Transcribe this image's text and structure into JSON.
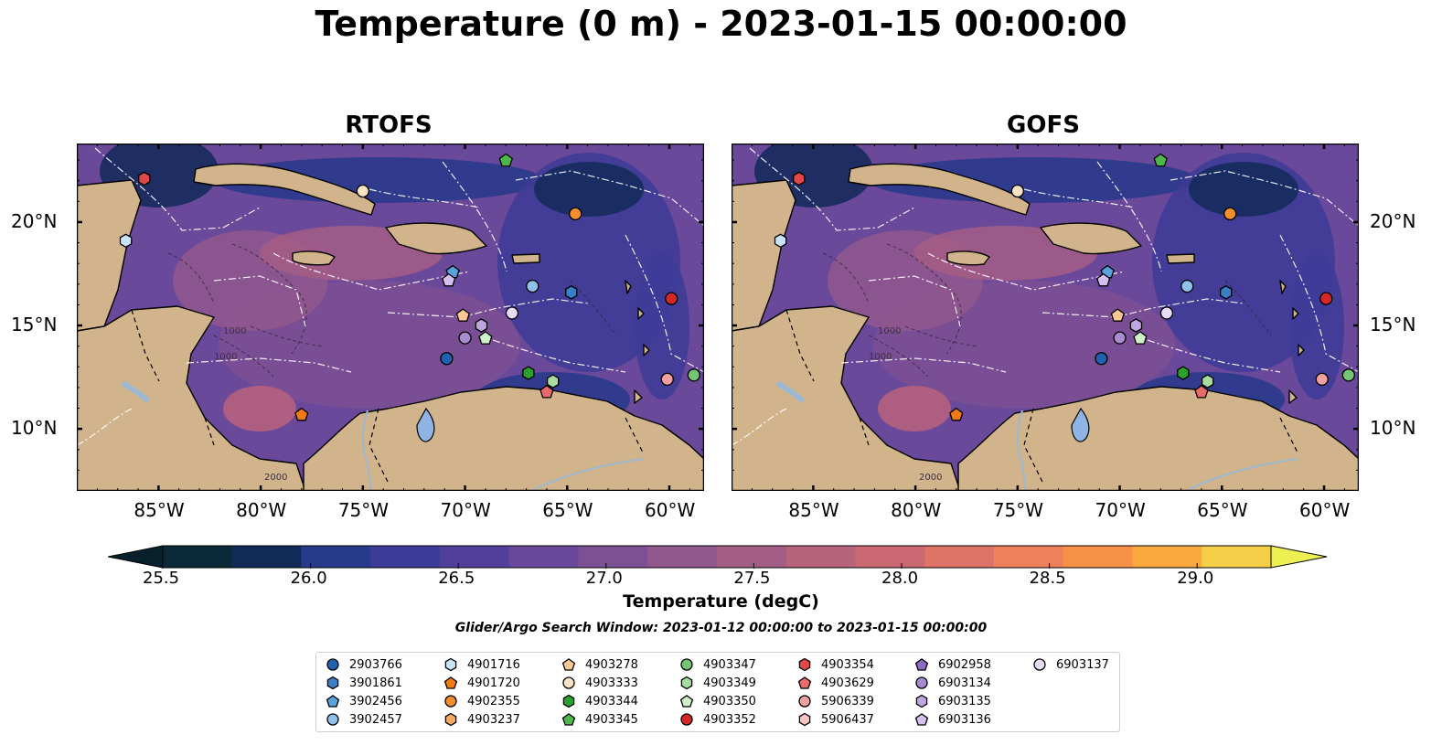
{
  "title": "Temperature (0 m) - 2023-01-15 00:00:00",
  "panels": [
    {
      "title": "RTOFS"
    },
    {
      "title": "GOFS"
    }
  ],
  "axes": {
    "lon_ticks": [
      "85°W",
      "80°W",
      "75°W",
      "70°W",
      "65°W",
      "60°W"
    ],
    "lon_values": [
      -85,
      -80,
      -75,
      -70,
      -65,
      -60
    ],
    "lat_ticks": [
      "20°N",
      "15°N",
      "10°N"
    ],
    "lat_values": [
      20,
      15,
      10
    ],
    "lon_range": [
      -89,
      -58.3
    ],
    "lat_range": [
      7,
      23.8
    ]
  },
  "colorbar": {
    "label": "Temperature (degC)",
    "ticks": [
      "25.5",
      "26.0",
      "26.5",
      "27.0",
      "27.5",
      "28.0",
      "28.5",
      "29.0"
    ],
    "tick_values": [
      25.5,
      26.0,
      26.5,
      27.0,
      27.5,
      28.0,
      28.5,
      29.0
    ],
    "range": [
      25.5,
      29.25
    ],
    "colors": [
      "#0a2a3a",
      "#122a58",
      "#273a8c",
      "#3d3c98",
      "#523f9c",
      "#6a489a",
      "#7c5094",
      "#91588d",
      "#a35e86",
      "#b8637c",
      "#cb6973",
      "#de7366",
      "#ee815a",
      "#f79147",
      "#f9a83e",
      "#f6cf49"
    ]
  },
  "annotations": {
    "search_window": "Glider/Argo Search Window: 2023-01-12 00:00:00 to 2023-01-15 00:00:00",
    "contour_labels": [
      "1000",
      "1000",
      "2000"
    ]
  },
  "colors": {
    "land": "#d2b48c",
    "lakes": "#8fb3e3",
    "rivers": "#9db8d0",
    "eez_lines": "#ffffff"
  },
  "legend": [
    {
      "id": "2903766",
      "marker": "circle",
      "color": "#1f63b0"
    },
    {
      "id": "3901861",
      "marker": "hexagon",
      "color": "#3a80c8"
    },
    {
      "id": "3902456",
      "marker": "pentagon",
      "color": "#5aa2dc"
    },
    {
      "id": "3902457",
      "marker": "circle",
      "color": "#8fc1ea"
    },
    {
      "id": "4901716",
      "marker": "hexagon",
      "color": "#c8e4f8"
    },
    {
      "id": "4901720",
      "marker": "pentagon",
      "color": "#f07a14"
    },
    {
      "id": "4902355",
      "marker": "circle",
      "color": "#f68e2e"
    },
    {
      "id": "4903237",
      "marker": "hexagon",
      "color": "#f9a95e"
    },
    {
      "id": "4903278",
      "marker": "pentagon",
      "color": "#fbc895"
    },
    {
      "id": "4903333",
      "marker": "circle",
      "color": "#fde3c6"
    },
    {
      "id": "4903344",
      "marker": "hexagon",
      "color": "#2ca02c"
    },
    {
      "id": "4903345",
      "marker": "pentagon",
      "color": "#4cb84a"
    },
    {
      "id": "4903347",
      "marker": "circle",
      "color": "#74c674"
    },
    {
      "id": "4903349",
      "marker": "hexagon",
      "color": "#a6dea0"
    },
    {
      "id": "4903350",
      "marker": "pentagon",
      "color": "#cff0c8"
    },
    {
      "id": "4903352",
      "marker": "circle",
      "color": "#d62728"
    },
    {
      "id": "4903354",
      "marker": "hexagon",
      "color": "#e04848"
    },
    {
      "id": "4903629",
      "marker": "pentagon",
      "color": "#ea6b6b"
    },
    {
      "id": "5906339",
      "marker": "circle",
      "color": "#f4a0a0"
    },
    {
      "id": "5906437",
      "marker": "hexagon",
      "color": "#f9c6c6"
    },
    {
      "id": "6902958",
      "marker": "pentagon",
      "color": "#8c6cc0"
    },
    {
      "id": "6903134",
      "marker": "circle",
      "color": "#a88bd0"
    },
    {
      "id": "6903135",
      "marker": "hexagon",
      "color": "#c0a6e0"
    },
    {
      "id": "6903136",
      "marker": "pentagon",
      "color": "#d4c0ec"
    },
    {
      "id": "6903137",
      "marker": "circle",
      "color": "#e8dcf6"
    }
  ],
  "floats": [
    {
      "id": "4903354",
      "lon": -85.7,
      "lat": 22.1
    },
    {
      "id": "4903333",
      "lon": -75.0,
      "lat": 21.5
    },
    {
      "id": "4903345",
      "lon": -68.0,
      "lat": 23.0
    },
    {
      "id": "4901716",
      "lon": -86.6,
      "lat": 19.1
    },
    {
      "id": "4902355",
      "lon": -64.6,
      "lat": 20.4
    },
    {
      "id": "3902456",
      "lon": -70.6,
      "lat": 17.6
    },
    {
      "id": "6903136",
      "lon": -70.8,
      "lat": 17.2
    },
    {
      "id": "3902457",
      "lon": -66.7,
      "lat": 16.9
    },
    {
      "id": "3901861",
      "lon": -64.8,
      "lat": 16.6
    },
    {
      "id": "4903352",
      "lon": -59.9,
      "lat": 16.3
    },
    {
      "id": "4903278",
      "lon": -70.1,
      "lat": 15.5
    },
    {
      "id": "6903137",
      "lon": -67.7,
      "lat": 15.6
    },
    {
      "id": "6903135",
      "lon": -69.2,
      "lat": 15.0
    },
    {
      "id": "6903134",
      "lon": -70.0,
      "lat": 14.4
    },
    {
      "id": "4903350",
      "lon": -69.0,
      "lat": 14.4
    },
    {
      "id": "2903766",
      "lon": -70.9,
      "lat": 13.4
    },
    {
      "id": "4903344",
      "lon": -66.9,
      "lat": 12.7
    },
    {
      "id": "4903349",
      "lon": -65.7,
      "lat": 12.3
    },
    {
      "id": "4903629",
      "lon": -66.0,
      "lat": 11.8
    },
    {
      "id": "5906339",
      "lon": -60.1,
      "lat": 12.4
    },
    {
      "id": "4903347",
      "lon": -58.8,
      "lat": 12.6
    },
    {
      "id": "4901720",
      "lon": -78.0,
      "lat": 10.7
    }
  ]
}
